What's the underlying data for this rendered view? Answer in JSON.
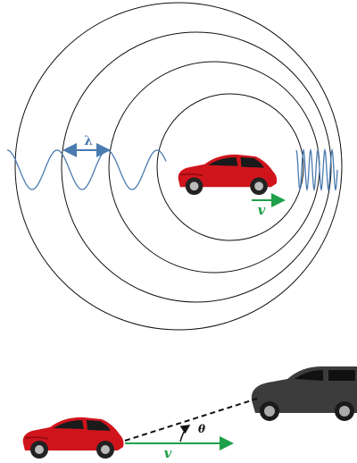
{
  "labels": {
    "wavelength": "λ",
    "velocity_top": "v",
    "velocity_bottom": "v",
    "angle": "θ"
  }
}
